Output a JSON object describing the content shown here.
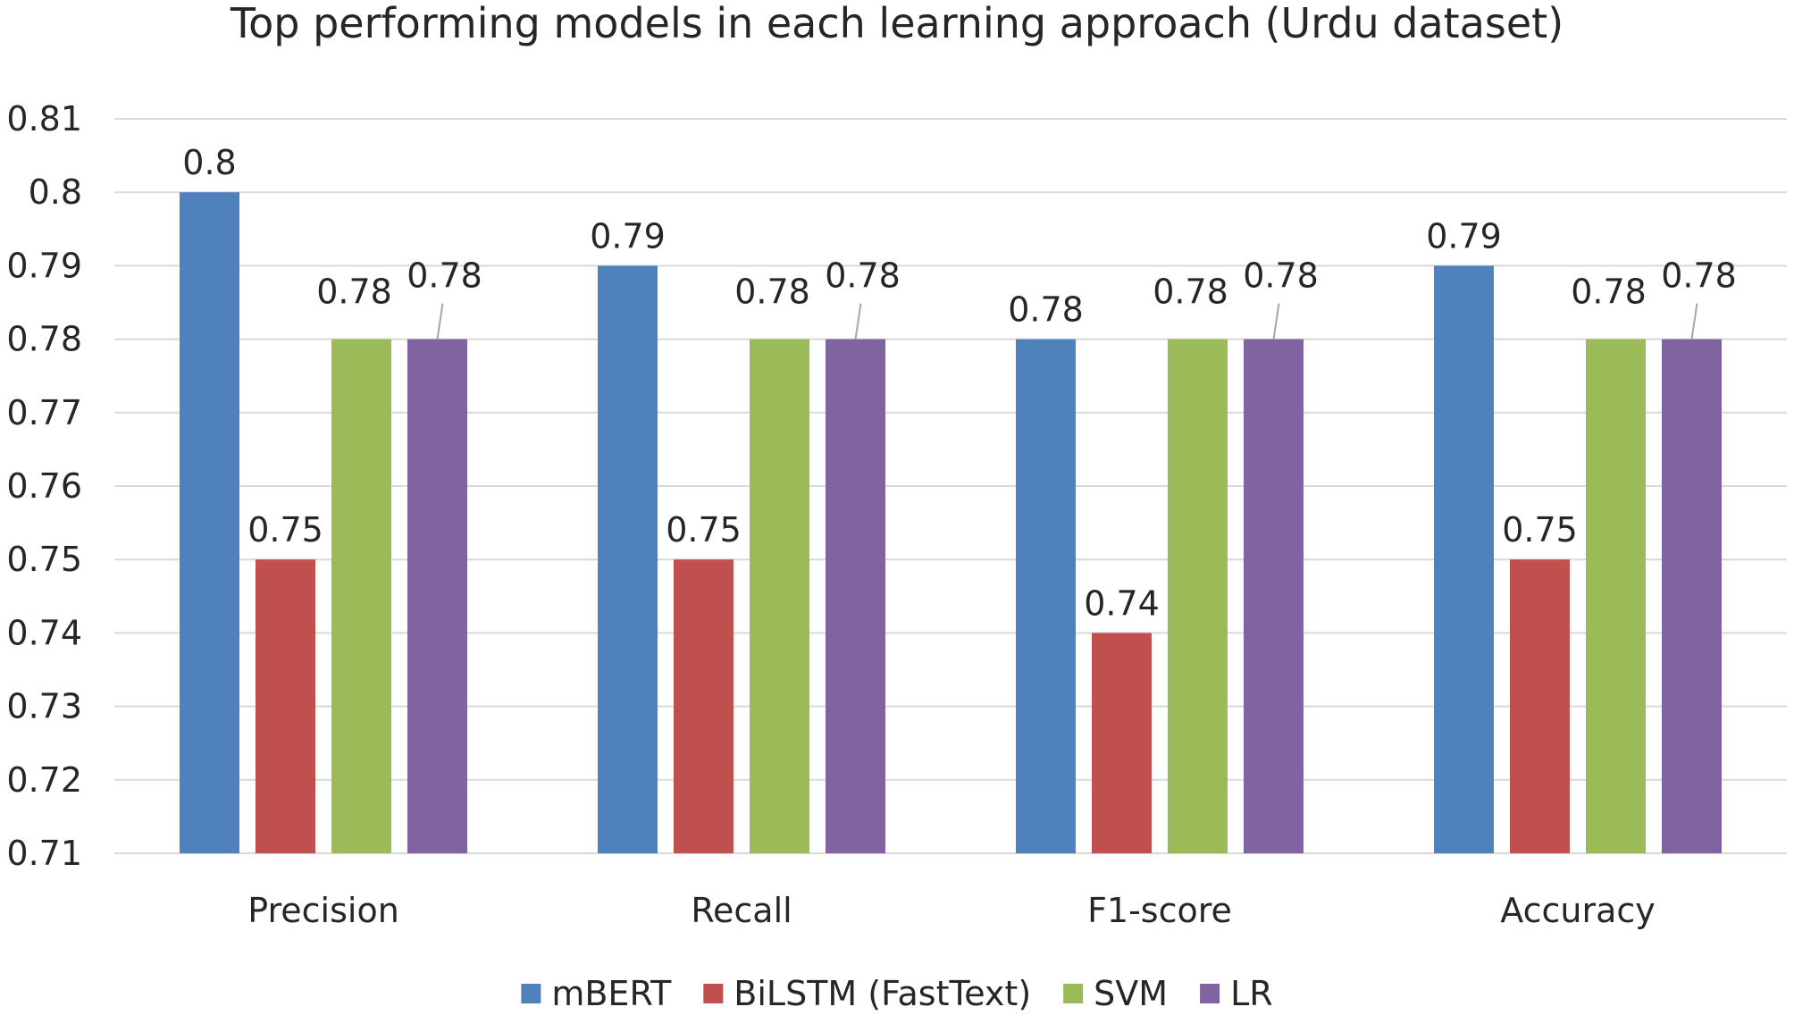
{
  "chart_data": {
    "type": "bar",
    "title": "Top performing models in each learning approach (Urdu dataset)",
    "xlabel": "",
    "ylabel": "",
    "categories": [
      "Precision",
      "Recall",
      "F1-score",
      "Accuracy"
    ],
    "series": [
      {
        "name": "mBERT",
        "color": "#4f81bd",
        "values": [
          0.8,
          0.79,
          0.78,
          0.79
        ],
        "labels": [
          "0.8",
          "0.79",
          "0.78",
          "0.79"
        ]
      },
      {
        "name": "BiLSTM (FastText)",
        "color": "#c0504d",
        "values": [
          0.75,
          0.75,
          0.74,
          0.75
        ],
        "labels": [
          "0.75",
          "0.75",
          "0.74",
          "0.75"
        ]
      },
      {
        "name": "SVM",
        "color": "#9bbb59",
        "values": [
          0.78,
          0.78,
          0.78,
          0.78
        ],
        "labels": [
          "0.78",
          "0.78",
          "0.78",
          "0.78"
        ]
      },
      {
        "name": "LR",
        "color": "#8064a2",
        "values": [
          0.78,
          0.78,
          0.78,
          0.78
        ],
        "labels": [
          "0.78",
          "0.78",
          "0.78",
          "0.78"
        ]
      }
    ],
    "ylim": [
      0.71,
      0.81
    ],
    "yticks": [
      "0.81",
      "0.8",
      "0.79",
      "0.78",
      "0.77",
      "0.76",
      "0.75",
      "0.74",
      "0.73",
      "0.72",
      "0.71"
    ],
    "grid": true,
    "legend_position": "bottom"
  }
}
